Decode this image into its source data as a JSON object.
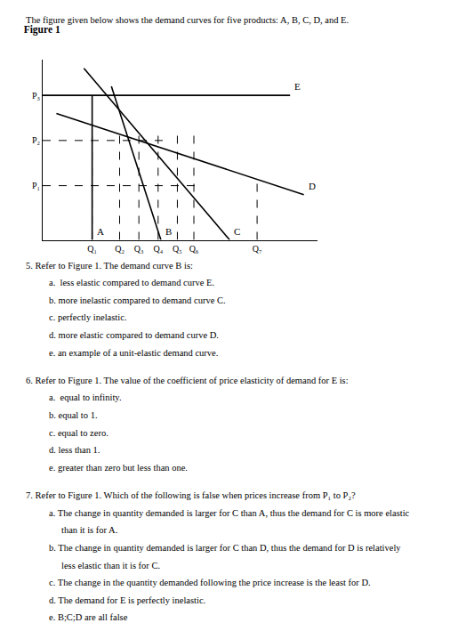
{
  "chart_data": {
    "type": "line",
    "title": "Figure 1",
    "subtitle": "The figure given below shows the demand curves for five products: A, B, C, D, and E.",
    "xlim": [
      0,
      10
    ],
    "ylim": [
      0,
      10
    ],
    "xticks": [
      {
        "value": 1.8,
        "label": "Q₁"
      },
      {
        "value": 2.8,
        "label": "Q₂"
      },
      {
        "value": 3.5,
        "label": "Q₃"
      },
      {
        "value": 4.2,
        "label": "Q₄"
      },
      {
        "value": 4.9,
        "label": "Q₅"
      },
      {
        "value": 5.5,
        "label": "Q₆"
      },
      {
        "value": 7.8,
        "label": "Q₇"
      }
    ],
    "yticks": [
      {
        "value": 3.0,
        "label": "P₁"
      },
      {
        "value": 5.5,
        "label": "P₂"
      },
      {
        "value": 8.0,
        "label": "P₃"
      }
    ],
    "grid": false,
    "series": [
      {
        "name": "E",
        "color": "#000000",
        "line_style": "solid",
        "x": [
          0,
          9.0
        ],
        "values": [
          8.0,
          8.0
        ]
      },
      {
        "name": "A",
        "color": "#000000",
        "line_style": "solid",
        "x": [
          1.8,
          1.8
        ],
        "values": [
          0,
          8.0
        ]
      },
      {
        "name": "B",
        "color": "#000000",
        "line_style": "solid",
        "x": [
          2.5,
          4.3
        ],
        "values": [
          8.5,
          0.0
        ]
      },
      {
        "name": "C",
        "color": "#000000",
        "line_style": "solid",
        "x": [
          1.5,
          6.8
        ],
        "values": [
          9.5,
          0.0
        ]
      },
      {
        "name": "D",
        "color": "#000000",
        "line_style": "solid",
        "x": [
          0.5,
          9.5
        ],
        "values": [
          7.0,
          2.5
        ]
      },
      {
        "color": "#000000",
        "line_style": "dashed",
        "x": [
          0,
          5.8
        ],
        "values": [
          3.0,
          3.0
        ]
      },
      {
        "color": "#000000",
        "line_style": "dashed",
        "x": [
          0,
          4.5
        ],
        "values": [
          5.5,
          5.5
        ]
      },
      {
        "color": "#000000",
        "line_style": "dashed",
        "x": [
          1.8,
          1.8
        ],
        "values": [
          0,
          6.0
        ]
      },
      {
        "color": "#000000",
        "line_style": "dashed",
        "x": [
          2.8,
          2.8
        ],
        "values": [
          0,
          6.0
        ]
      },
      {
        "color": "#000000",
        "line_style": "dashed",
        "x": [
          3.5,
          3.5
        ],
        "values": [
          0,
          6.0
        ]
      },
      {
        "color": "#000000",
        "line_style": "dashed",
        "x": [
          4.2,
          4.2
        ],
        "values": [
          0,
          6.0
        ]
      },
      {
        "color": "#000000",
        "line_style": "dashed",
        "x": [
          4.9,
          4.9
        ],
        "values": [
          0,
          6.0
        ]
      },
      {
        "color": "#000000",
        "line_style": "dashed",
        "x": [
          5.5,
          5.5
        ],
        "values": [
          0,
          6.0
        ]
      },
      {
        "color": "#000000",
        "line_style": "dashed",
        "x": [
          7.8,
          7.8
        ],
        "values": [
          0,
          3.5
        ]
      }
    ],
    "annotations": [
      {
        "text": "5. Refer to Figure 1. The demand curve B is:",
        "options": [
          [
            "a.  less elastic compared to demand curve E."
          ],
          [
            "b. more inelastic compared to demand curve C."
          ],
          [
            "c. perfectly inelastic."
          ],
          [
            "d. more elastic compared to demand curve D."
          ],
          [
            "e. an example of a unit-elastic demand curve."
          ]
        ]
      },
      {
        "text": "6. Refer to Figure 1. The value of the coefficient of price elasticity of demand for E is:",
        "options": [
          [
            "a.  equal to infinity."
          ],
          [
            "b. equal to 1."
          ],
          [
            "c. equal to zero."
          ],
          [
            "d. less than 1."
          ],
          [
            "e. greater than zero but less than one."
          ]
        ]
      },
      {
        "text": "7. Refer to Figure 1. Which of the following is false when prices increase from P₁ to P₂?",
        "options": [
          [
            "a. The change in quantity demanded is larger for C than A, thus the demand for C is more elastic",
            "than it is for A."
          ],
          [
            "b. The change in quantity demanded is larger for C than D, thus the demand for D is relatively",
            "less elastic than it is for C."
          ],
          [
            "c. The change in the quantity demanded following the price increase is the least for D."
          ],
          [
            "d. The demand for E is perfectly inelastic."
          ],
          [
            "e. B;C;D are all false"
          ]
        ]
      }
    ]
  }
}
